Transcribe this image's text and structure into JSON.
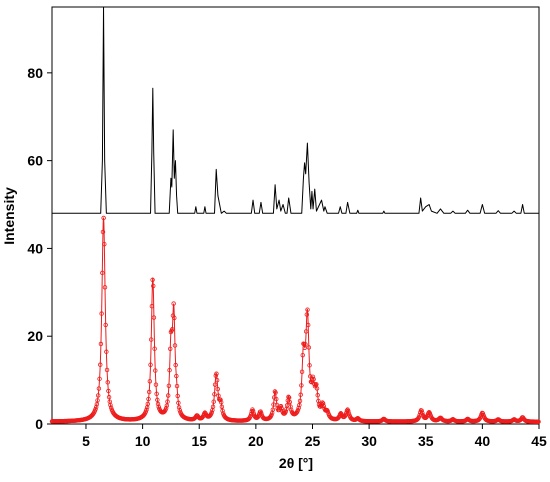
{
  "chart_data": {
    "type": "line",
    "title": "",
    "xlabel": "2θ [°]",
    "ylabel": "Intensity",
    "xlim": [
      2,
      45
    ],
    "ylim": [
      0,
      95
    ],
    "grid": false,
    "legend": "none",
    "x_ticks": [
      5,
      10,
      15,
      20,
      25,
      30,
      35,
      40,
      45
    ],
    "y_ticks": [
      0,
      20,
      40,
      60,
      80
    ],
    "series": [
      {
        "style": "line",
        "color": "#000000",
        "baseline": 48,
        "points": [
          [
            2.0,
            48.0
          ],
          [
            6.3,
            48.0
          ],
          [
            6.45,
            60
          ],
          [
            6.55,
            95
          ],
          [
            6.65,
            60
          ],
          [
            6.8,
            48.0
          ],
          [
            10.7,
            48.0
          ],
          [
            10.82,
            62
          ],
          [
            10.9,
            76.5
          ],
          [
            10.98,
            62
          ],
          [
            11.1,
            48.0
          ],
          [
            12.35,
            48.0
          ],
          [
            12.5,
            56
          ],
          [
            12.58,
            54
          ],
          [
            12.7,
            67
          ],
          [
            12.8,
            56
          ],
          [
            12.9,
            60
          ],
          [
            13.0,
            52
          ],
          [
            13.1,
            48.0
          ],
          [
            14.6,
            48.0
          ],
          [
            14.7,
            49.5
          ],
          [
            14.8,
            48.0
          ],
          [
            15.4,
            48.0
          ],
          [
            15.5,
            49.5
          ],
          [
            15.6,
            48.0
          ],
          [
            16.35,
            48.0
          ],
          [
            16.5,
            58
          ],
          [
            16.65,
            52
          ],
          [
            16.8,
            50
          ],
          [
            16.95,
            48.0
          ],
          [
            17.2,
            48.5
          ],
          [
            17.4,
            48.0
          ],
          [
            19.6,
            48.0
          ],
          [
            19.75,
            51
          ],
          [
            19.9,
            48.0
          ],
          [
            20.3,
            48.0
          ],
          [
            20.45,
            50.5
          ],
          [
            20.6,
            48.0
          ],
          [
            21.55,
            48.0
          ],
          [
            21.7,
            54.5
          ],
          [
            21.85,
            49
          ],
          [
            22.05,
            51
          ],
          [
            22.2,
            48.5
          ],
          [
            22.4,
            50
          ],
          [
            22.6,
            48.0
          ],
          [
            22.75,
            48.0
          ],
          [
            22.9,
            51.5
          ],
          [
            23.1,
            48.0
          ],
          [
            24.05,
            48.0
          ],
          [
            24.2,
            56
          ],
          [
            24.3,
            59.5
          ],
          [
            24.4,
            57
          ],
          [
            24.55,
            64
          ],
          [
            24.7,
            55
          ],
          [
            24.85,
            49
          ],
          [
            24.95,
            53
          ],
          [
            25.05,
            49
          ],
          [
            25.2,
            53.5
          ],
          [
            25.35,
            48.5
          ],
          [
            25.8,
            51
          ],
          [
            26.0,
            48.5
          ],
          [
            26.1,
            49.5
          ],
          [
            26.3,
            48.0
          ],
          [
            27.3,
            48.0
          ],
          [
            27.45,
            49.5
          ],
          [
            27.6,
            48.0
          ],
          [
            27.95,
            48.0
          ],
          [
            28.1,
            50.5
          ],
          [
            28.3,
            48.0
          ],
          [
            28.9,
            48.0
          ],
          [
            29.0,
            48.7
          ],
          [
            29.1,
            48.0
          ],
          [
            31.2,
            48.0
          ],
          [
            31.3,
            48.5
          ],
          [
            31.4,
            48.0
          ],
          [
            34.4,
            48.0
          ],
          [
            34.55,
            51.5
          ],
          [
            34.7,
            48.5
          ],
          [
            35.0,
            49.5
          ],
          [
            35.3,
            50
          ],
          [
            35.5,
            48.5
          ],
          [
            36.0,
            48.0
          ],
          [
            36.3,
            49
          ],
          [
            36.6,
            48.0
          ],
          [
            37.2,
            48.0
          ],
          [
            37.4,
            48.5
          ],
          [
            37.6,
            48.0
          ],
          [
            38.5,
            48.0
          ],
          [
            38.7,
            48.7
          ],
          [
            38.9,
            48.0
          ],
          [
            39.8,
            48.0
          ],
          [
            40.0,
            50
          ],
          [
            40.2,
            48.0
          ],
          [
            41.2,
            48.0
          ],
          [
            41.4,
            48.6
          ],
          [
            41.6,
            48.0
          ],
          [
            42.6,
            48.0
          ],
          [
            42.8,
            48.5
          ],
          [
            43.0,
            48.0
          ],
          [
            43.4,
            48.0
          ],
          [
            43.55,
            50
          ],
          [
            43.7,
            48.0
          ],
          [
            45.0,
            48.0
          ]
        ]
      },
      {
        "style": "line-markers",
        "color": "#ee1c1c",
        "baseline": 0.5,
        "peaks": [
          {
            "x": 6.55,
            "h": 46.5,
            "w": 0.18
          },
          {
            "x": 10.9,
            "h": 32.5,
            "w": 0.16
          },
          {
            "x": 12.5,
            "h": 14.5,
            "w": 0.14
          },
          {
            "x": 12.75,
            "h": 22.5,
            "w": 0.14
          },
          {
            "x": 13.0,
            "h": 3.0,
            "w": 0.12
          },
          {
            "x": 14.8,
            "h": 1.0,
            "w": 0.15
          },
          {
            "x": 15.5,
            "h": 1.5,
            "w": 0.15
          },
          {
            "x": 16.5,
            "h": 10.5,
            "w": 0.18
          },
          {
            "x": 16.9,
            "h": 3.0,
            "w": 0.15
          },
          {
            "x": 19.7,
            "h": 2.5,
            "w": 0.15
          },
          {
            "x": 20.4,
            "h": 2.0,
            "w": 0.15
          },
          {
            "x": 21.7,
            "h": 6.5,
            "w": 0.15
          },
          {
            "x": 22.2,
            "h": 2.5,
            "w": 0.15
          },
          {
            "x": 22.9,
            "h": 5.0,
            "w": 0.17
          },
          {
            "x": 24.2,
            "h": 13.0,
            "w": 0.16
          },
          {
            "x": 24.55,
            "h": 22.5,
            "w": 0.17
          },
          {
            "x": 25.05,
            "h": 6.0,
            "w": 0.16
          },
          {
            "x": 25.35,
            "h": 5.5,
            "w": 0.16
          },
          {
            "x": 25.9,
            "h": 3.0,
            "w": 0.18
          },
          {
            "x": 26.3,
            "h": 1.5,
            "w": 0.16
          },
          {
            "x": 27.5,
            "h": 1.5,
            "w": 0.15
          },
          {
            "x": 28.1,
            "h": 2.5,
            "w": 0.17
          },
          {
            "x": 29.0,
            "h": 0.6,
            "w": 0.15
          },
          {
            "x": 31.3,
            "h": 0.6,
            "w": 0.15
          },
          {
            "x": 34.6,
            "h": 2.5,
            "w": 0.16
          },
          {
            "x": 35.3,
            "h": 2.0,
            "w": 0.18
          },
          {
            "x": 36.3,
            "h": 0.8,
            "w": 0.18
          },
          {
            "x": 37.4,
            "h": 0.5,
            "w": 0.15
          },
          {
            "x": 38.7,
            "h": 0.6,
            "w": 0.15
          },
          {
            "x": 40.0,
            "h": 2.0,
            "w": 0.17
          },
          {
            "x": 41.4,
            "h": 0.5,
            "w": 0.15
          },
          {
            "x": 42.8,
            "h": 0.5,
            "w": 0.15
          },
          {
            "x": 43.55,
            "h": 1.0,
            "w": 0.15
          }
        ]
      }
    ]
  }
}
